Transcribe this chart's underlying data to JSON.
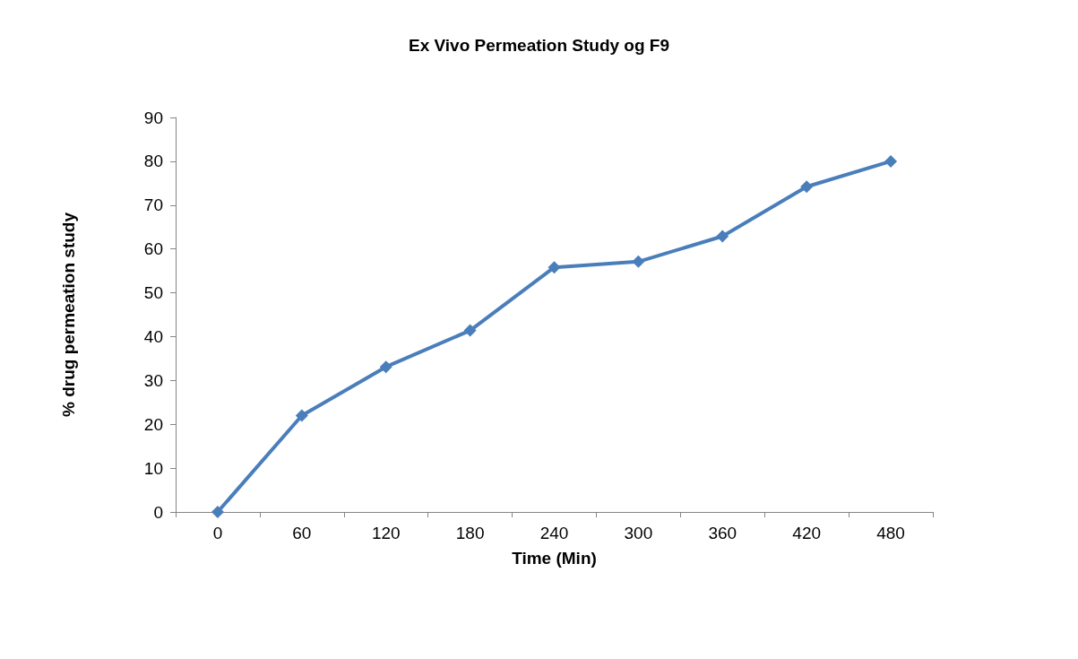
{
  "chart_data": {
    "type": "line",
    "title": "Ex Vivo Permeation Study og F9",
    "xlabel": "Time (Min)",
    "ylabel": "% drug permeation study",
    "categories": [
      "0",
      "60",
      "120",
      "180",
      "240",
      "300",
      "360",
      "420",
      "480"
    ],
    "series": [
      {
        "color": "#4a7ebb",
        "values": [
          0,
          22,
          33.1,
          41.4,
          55.8,
          57.1,
          62.9,
          74.2,
          80
        ]
      }
    ],
    "ylim": [
      0,
      90
    ],
    "yticks": [
      0,
      10,
      20,
      30,
      40,
      50,
      60,
      70,
      80,
      90
    ],
    "grid": false,
    "marker": "diamond",
    "line_style": "solid"
  }
}
